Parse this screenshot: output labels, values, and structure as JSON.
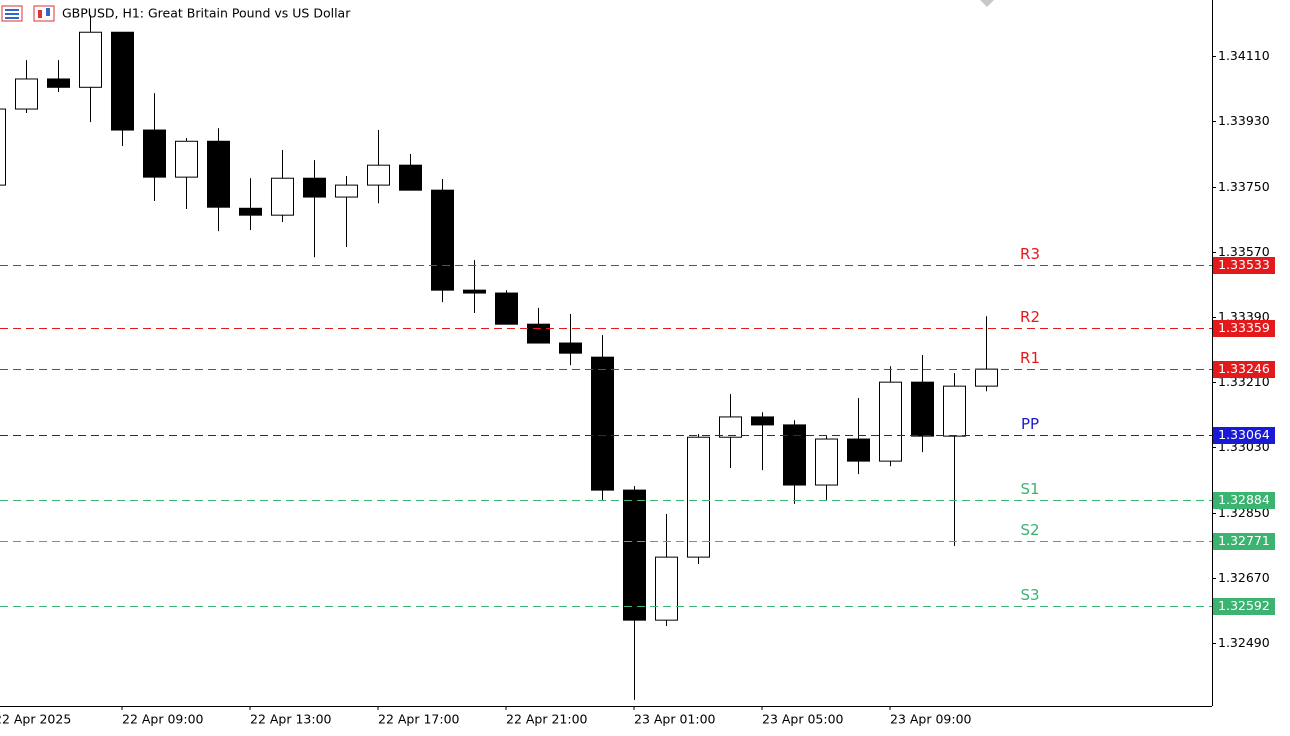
{
  "chart_data": {
    "type": "candlestick",
    "title": "GBPUSD, H1:  Great Britain Pound vs US Dollar",
    "categories": [
      "22 Apr 2025",
      null,
      null,
      null,
      "22 Apr 09:00",
      null,
      null,
      null,
      "22 Apr 13:00",
      null,
      null,
      null,
      "22 Apr 17:00",
      null,
      null,
      null,
      "22 Apr 21:00",
      null,
      null,
      null,
      "23 Apr 01:00",
      null,
      null,
      null,
      "23 Apr 05:00",
      null,
      null,
      null,
      "23 Apr 09:00",
      null,
      null,
      null
    ],
    "open": [
      1.33754,
      1.33964,
      1.34047,
      1.34024,
      1.34176,
      1.33906,
      1.33776,
      1.33875,
      1.3369,
      1.33671,
      1.33773,
      1.33721,
      1.33754,
      1.33809,
      1.3374,
      1.33464,
      1.33456,
      1.3337,
      1.33318,
      1.33279,
      1.32912,
      1.32553,
      1.32727,
      1.33058,
      1.33114,
      1.33092,
      1.32926,
      1.33053,
      1.32992,
      1.3321,
      1.33061,
      1.33199
    ],
    "high": [
      1.33989,
      1.34099,
      1.34099,
      1.34223,
      1.34176,
      1.34008,
      1.33884,
      1.33911,
      1.33773,
      1.33851,
      1.33823,
      1.33779,
      1.33906,
      1.3384,
      1.33771,
      1.33547,
      1.33464,
      1.33415,
      1.33398,
      1.3334,
      1.32923,
      1.32846,
      1.33067,
      1.33177,
      1.33127,
      1.33105,
      1.33061,
      1.33166,
      1.33254,
      1.33285,
      1.33235,
      1.33392
    ],
    "low": [
      1.33754,
      1.33953,
      1.34011,
      1.33928,
      1.33862,
      1.3371,
      1.33688,
      1.33627,
      1.3363,
      1.33652,
      1.33555,
      1.33583,
      1.33704,
      1.3374,
      1.33431,
      1.33401,
      1.3337,
      1.33318,
      1.33257,
      1.32885,
      1.32333,
      1.32537,
      1.32708,
      1.32973,
      1.32967,
      1.32874,
      1.32885,
      1.32956,
      1.32978,
      1.33017,
      1.32758,
      1.33185
    ],
    "close": [
      1.33964,
      1.34047,
      1.34024,
      1.34176,
      1.33906,
      1.33776,
      1.33875,
      1.33693,
      1.33671,
      1.33773,
      1.33721,
      1.33754,
      1.33809,
      1.3374,
      1.33464,
      1.33456,
      1.3337,
      1.33318,
      1.3329,
      1.32912,
      1.32553,
      1.32727,
      1.33058,
      1.33114,
      1.33092,
      1.32926,
      1.33053,
      1.32992,
      1.3321,
      1.33061,
      1.33199,
      1.33246
    ],
    "ylim": [
      1.32316,
      1.34265
    ],
    "yticks": [
      {
        "value": 1.3411,
        "label": "1.34110"
      },
      {
        "value": 1.3393,
        "label": "1.33930"
      },
      {
        "value": 1.3375,
        "label": "1.33750"
      },
      {
        "value": 1.3357,
        "label": "1.33570"
      },
      {
        "value": 1.3339,
        "label": "1.33390"
      },
      {
        "value": 1.3321,
        "label": "1.33210"
      },
      {
        "value": 1.3303,
        "label": "1.33030"
      },
      {
        "value": 1.3285,
        "label": "1.32850"
      },
      {
        "value": 1.3267,
        "label": "1.32670"
      },
      {
        "value": 1.3249,
        "label": "1.32490"
      }
    ],
    "levels": [
      {
        "name": "R3",
        "value": 1.33533,
        "color": "#e31a1c"
      },
      {
        "name": "R2",
        "value": 1.33359,
        "color": "#e31a1c"
      },
      {
        "name": "R1",
        "value": 1.33246,
        "color": "#e31a1c"
      },
      {
        "name": "PP",
        "value": 1.33064,
        "color": "#1a1ad6"
      },
      {
        "name": "S1",
        "value": 1.32884,
        "color": "#3cb371"
      },
      {
        "name": "S2",
        "value": 1.32771,
        "color": "#3cb371"
      },
      {
        "name": "S3",
        "value": 1.32592,
        "color": "#3cb371"
      }
    ]
  }
}
